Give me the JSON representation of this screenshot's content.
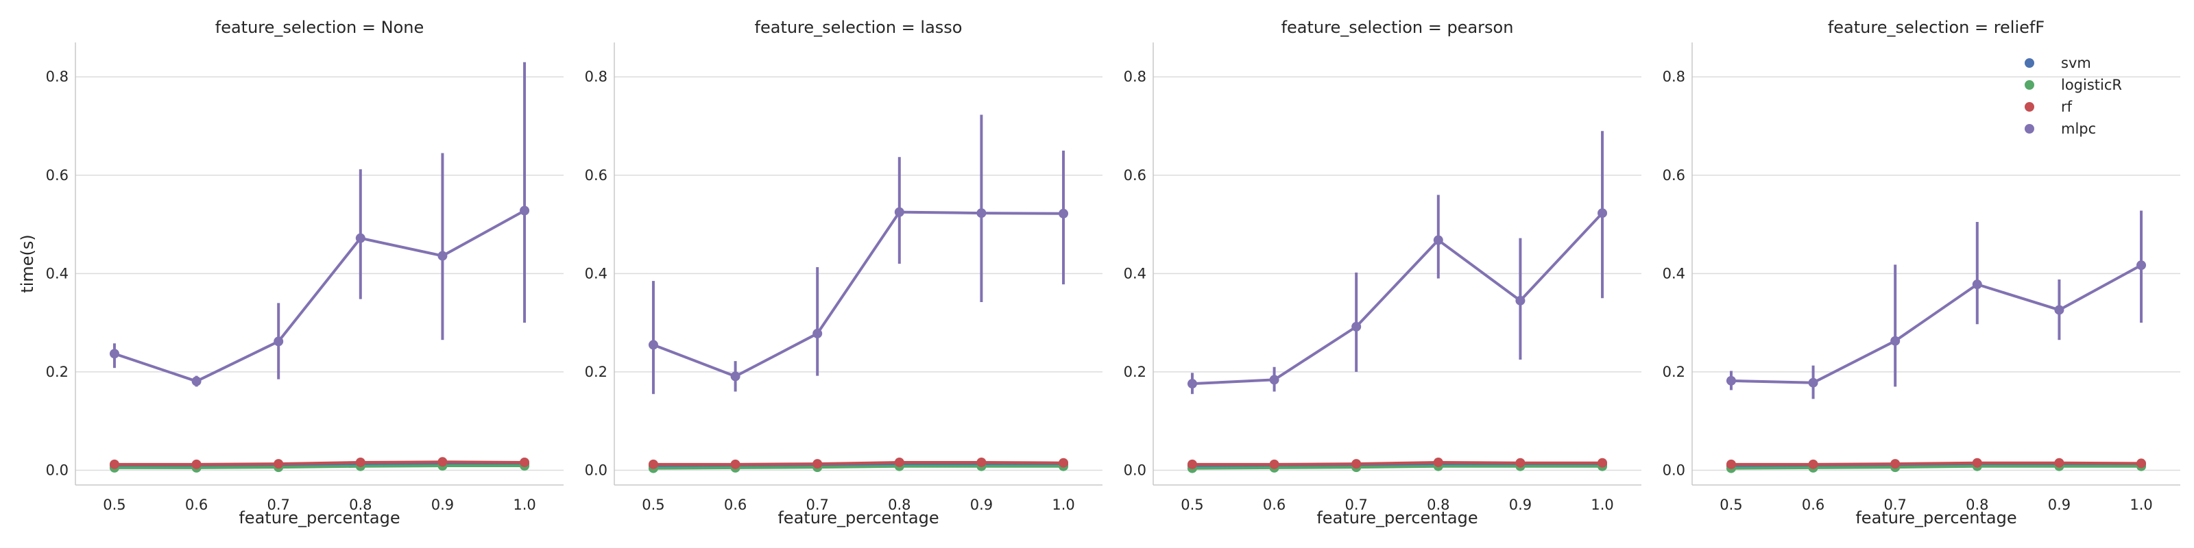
{
  "chart_data": {
    "type": "line",
    "ylabel": "time(s)",
    "xlabel": "feature_percentage",
    "x": [
      "0.5",
      "0.6",
      "0.7",
      "0.8",
      "0.9",
      "1.0"
    ],
    "ylim": [
      -0.03,
      0.87
    ],
    "yticks": [
      0.0,
      0.2,
      0.4,
      0.6,
      0.8
    ],
    "grid": "horizontal",
    "legend": {
      "position": "top-right",
      "entries": [
        {
          "name": "svm",
          "color": "#4c72b0"
        },
        {
          "name": "logisticR",
          "color": "#55a868"
        },
        {
          "name": "rf",
          "color": "#c44e52"
        },
        {
          "name": "mlpc",
          "color": "#8172b2"
        }
      ]
    },
    "panels": [
      {
        "title": "feature_selection = None",
        "series": [
          {
            "name": "svm",
            "color": "#4c72b0",
            "values": [
              0.01,
              0.009,
              0.009,
              0.012,
              0.013,
              0.013
            ]
          },
          {
            "name": "logisticR",
            "color": "#55a868",
            "values": [
              0.005,
              0.005,
              0.006,
              0.008,
              0.009,
              0.009
            ]
          },
          {
            "name": "rf",
            "color": "#c44e52",
            "values": [
              0.012,
              0.012,
              0.013,
              0.016,
              0.017,
              0.016
            ]
          },
          {
            "name": "mlpc",
            "color": "#8172b2",
            "values": [
              0.237,
              0.181,
              0.262,
              0.472,
              0.436,
              0.528
            ],
            "err_low": [
              0.208,
              0.17,
              0.185,
              0.348,
              0.265,
              0.3
            ],
            "err_high": [
              0.258,
              0.192,
              0.34,
              0.612,
              0.645,
              0.83
            ]
          }
        ]
      },
      {
        "title": "feature_selection = lasso",
        "series": [
          {
            "name": "svm",
            "color": "#4c72b0",
            "values": [
              0.009,
              0.009,
              0.01,
              0.012,
              0.012,
              0.012
            ]
          },
          {
            "name": "logisticR",
            "color": "#55a868",
            "values": [
              0.004,
              0.005,
              0.006,
              0.008,
              0.008,
              0.008
            ]
          },
          {
            "name": "rf",
            "color": "#c44e52",
            "values": [
              0.012,
              0.012,
              0.013,
              0.016,
              0.016,
              0.015
            ]
          },
          {
            "name": "mlpc",
            "color": "#8172b2",
            "values": [
              0.255,
              0.191,
              0.278,
              0.525,
              0.523,
              0.522
            ],
            "err_low": [
              0.155,
              0.16,
              0.192,
              0.42,
              0.342,
              0.378
            ],
            "err_high": [
              0.385,
              0.222,
              0.413,
              0.637,
              0.723,
              0.65
            ]
          }
        ]
      },
      {
        "title": "feature_selection = pearson",
        "series": [
          {
            "name": "svm",
            "color": "#4c72b0",
            "values": [
              0.009,
              0.009,
              0.01,
              0.012,
              0.012,
              0.012
            ]
          },
          {
            "name": "logisticR",
            "color": "#55a868",
            "values": [
              0.004,
              0.005,
              0.006,
              0.008,
              0.008,
              0.008
            ]
          },
          {
            "name": "rf",
            "color": "#c44e52",
            "values": [
              0.012,
              0.012,
              0.013,
              0.016,
              0.015,
              0.015
            ]
          },
          {
            "name": "mlpc",
            "color": "#8172b2",
            "values": [
              0.176,
              0.184,
              0.292,
              0.468,
              0.345,
              0.523
            ],
            "err_low": [
              0.155,
              0.16,
              0.2,
              0.39,
              0.225,
              0.35
            ],
            "err_high": [
              0.198,
              0.21,
              0.402,
              0.56,
              0.472,
              0.69
            ]
          }
        ]
      },
      {
        "title": "feature_selection = reliefF",
        "series": [
          {
            "name": "svm",
            "color": "#4c72b0",
            "values": [
              0.009,
              0.009,
              0.01,
              0.012,
              0.012,
              0.012
            ]
          },
          {
            "name": "logisticR",
            "color": "#55a868",
            "values": [
              0.004,
              0.005,
              0.006,
              0.008,
              0.008,
              0.008
            ]
          },
          {
            "name": "rf",
            "color": "#c44e52",
            "values": [
              0.012,
              0.012,
              0.013,
              0.015,
              0.015,
              0.014
            ]
          },
          {
            "name": "mlpc",
            "color": "#8172b2",
            "values": [
              0.182,
              0.178,
              0.263,
              0.378,
              0.326,
              0.417
            ],
            "err_low": [
              0.163,
              0.145,
              0.17,
              0.297,
              0.265,
              0.3
            ],
            "err_high": [
              0.202,
              0.213,
              0.418,
              0.505,
              0.388,
              0.528
            ]
          }
        ]
      }
    ]
  }
}
